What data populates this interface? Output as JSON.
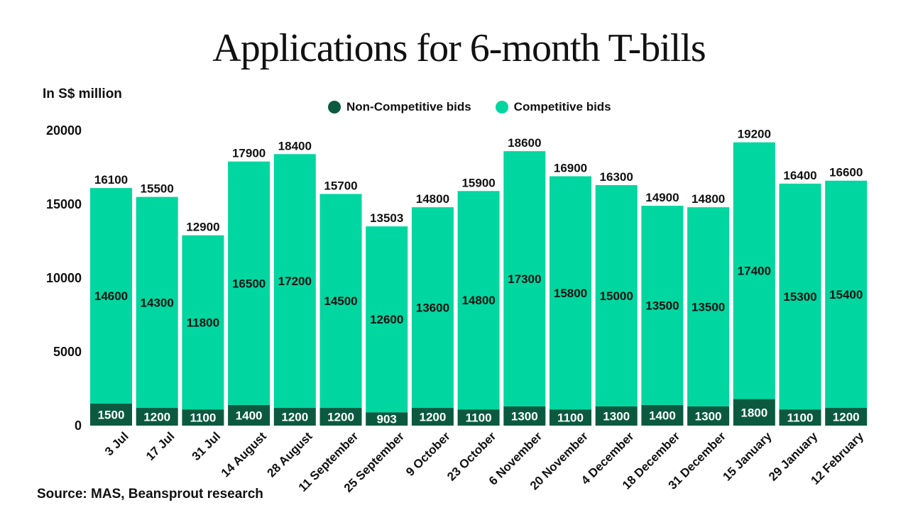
{
  "chart_data": {
    "type": "bar",
    "stacked": true,
    "title": "Applications for 6-month T-bills",
    "ylabel": "In S$ million",
    "ylim": [
      0,
      20000
    ],
    "yticks": [
      0,
      5000,
      10000,
      15000,
      20000
    ],
    "grid": false,
    "legend_position": "top-center",
    "categories": [
      "3 Jul",
      "17 Jul",
      "31 Jul",
      "14 August",
      "28 August",
      "11 September",
      "25 September",
      "9 October",
      "23 October",
      "6 November",
      "20 November",
      "4 December",
      "18 December",
      "31 December",
      "15 January",
      "29 January",
      "12 February"
    ],
    "series": [
      {
        "name": "Non-Competitive bids",
        "color": "#0b5a40",
        "values": [
          1500,
          1200,
          1100,
          1400,
          1200,
          1200,
          903,
          1200,
          1100,
          1300,
          1100,
          1300,
          1400,
          1300,
          1800,
          1100,
          1200
        ]
      },
      {
        "name": "Competitive bids",
        "color": "#00d6a0",
        "values": [
          14600,
          14300,
          11800,
          16500,
          17200,
          14500,
          12600,
          13600,
          14800,
          17300,
          15800,
          15000,
          13500,
          13500,
          17400,
          15300,
          15400
        ]
      }
    ],
    "totals": [
      16100,
      15500,
      12900,
      17900,
      18400,
      15700,
      13503,
      14800,
      15900,
      18600,
      16900,
      16300,
      14900,
      14800,
      19200,
      16400,
      16600
    ]
  },
  "source": "Source: MAS, Beansprout research"
}
